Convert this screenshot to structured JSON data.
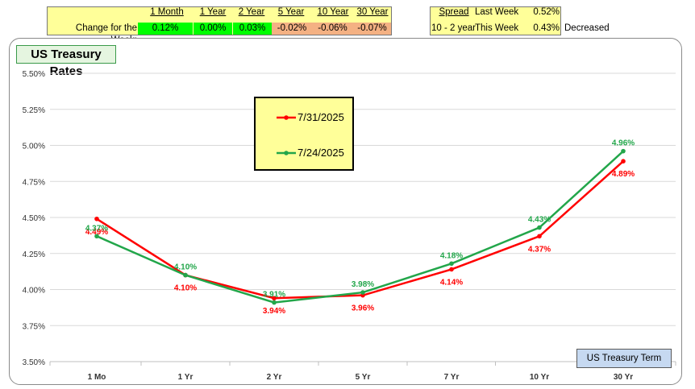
{
  "week_change": {
    "label": "Change for the Week:",
    "headers": [
      "1 Month",
      "1 Year",
      "2 Year",
      "5 Year",
      "10 Year",
      "30 Year"
    ],
    "values": [
      "0.12%",
      "0.00%",
      "0.03%",
      "-0.02%",
      "-0.06%",
      "-0.07%"
    ],
    "colors": [
      "#00ff00",
      "#00ff00",
      "#00ff00",
      "#f4b183",
      "#f4b183",
      "#f4b183"
    ]
  },
  "spread": {
    "header": "Spread",
    "row_label": "10 - 2 year",
    "last_week_label": "Last Week",
    "last_week_value": "0.52%",
    "this_week_label": "This Week",
    "this_week_value": "0.43%",
    "status": "Decreased"
  },
  "chart_title": "US Treasury Rates",
  "term_label": "US Treasury Term",
  "chart_data": {
    "type": "line",
    "categories": [
      "1 Mo",
      "1 Yr",
      "2 Yr",
      "5 Yr",
      "7 Yr",
      "10 Yr",
      "30 Yr"
    ],
    "ylim": [
      3.5,
      5.5
    ],
    "yticks": [
      "3.50%",
      "3.75%",
      "4.00%",
      "4.25%",
      "4.50%",
      "4.75%",
      "5.00%",
      "5.25%",
      "5.50%"
    ],
    "series": [
      {
        "name": "7/31/2025",
        "color": "#ff0000",
        "values": [
          4.49,
          4.1,
          3.94,
          3.96,
          4.14,
          4.37,
          4.89
        ],
        "labels": [
          "4.49%",
          "4.10%",
          "3.94%",
          "3.96%",
          "4.14%",
          "4.37%",
          "4.89%"
        ]
      },
      {
        "name": "7/24/2025",
        "color": "#22a64a",
        "values": [
          4.37,
          4.1,
          3.91,
          3.98,
          4.18,
          4.43,
          4.96
        ],
        "labels": [
          "4.37%",
          "4.10%",
          "3.91%",
          "3.98%",
          "4.18%",
          "4.43%",
          "4.96%"
        ]
      }
    ]
  }
}
